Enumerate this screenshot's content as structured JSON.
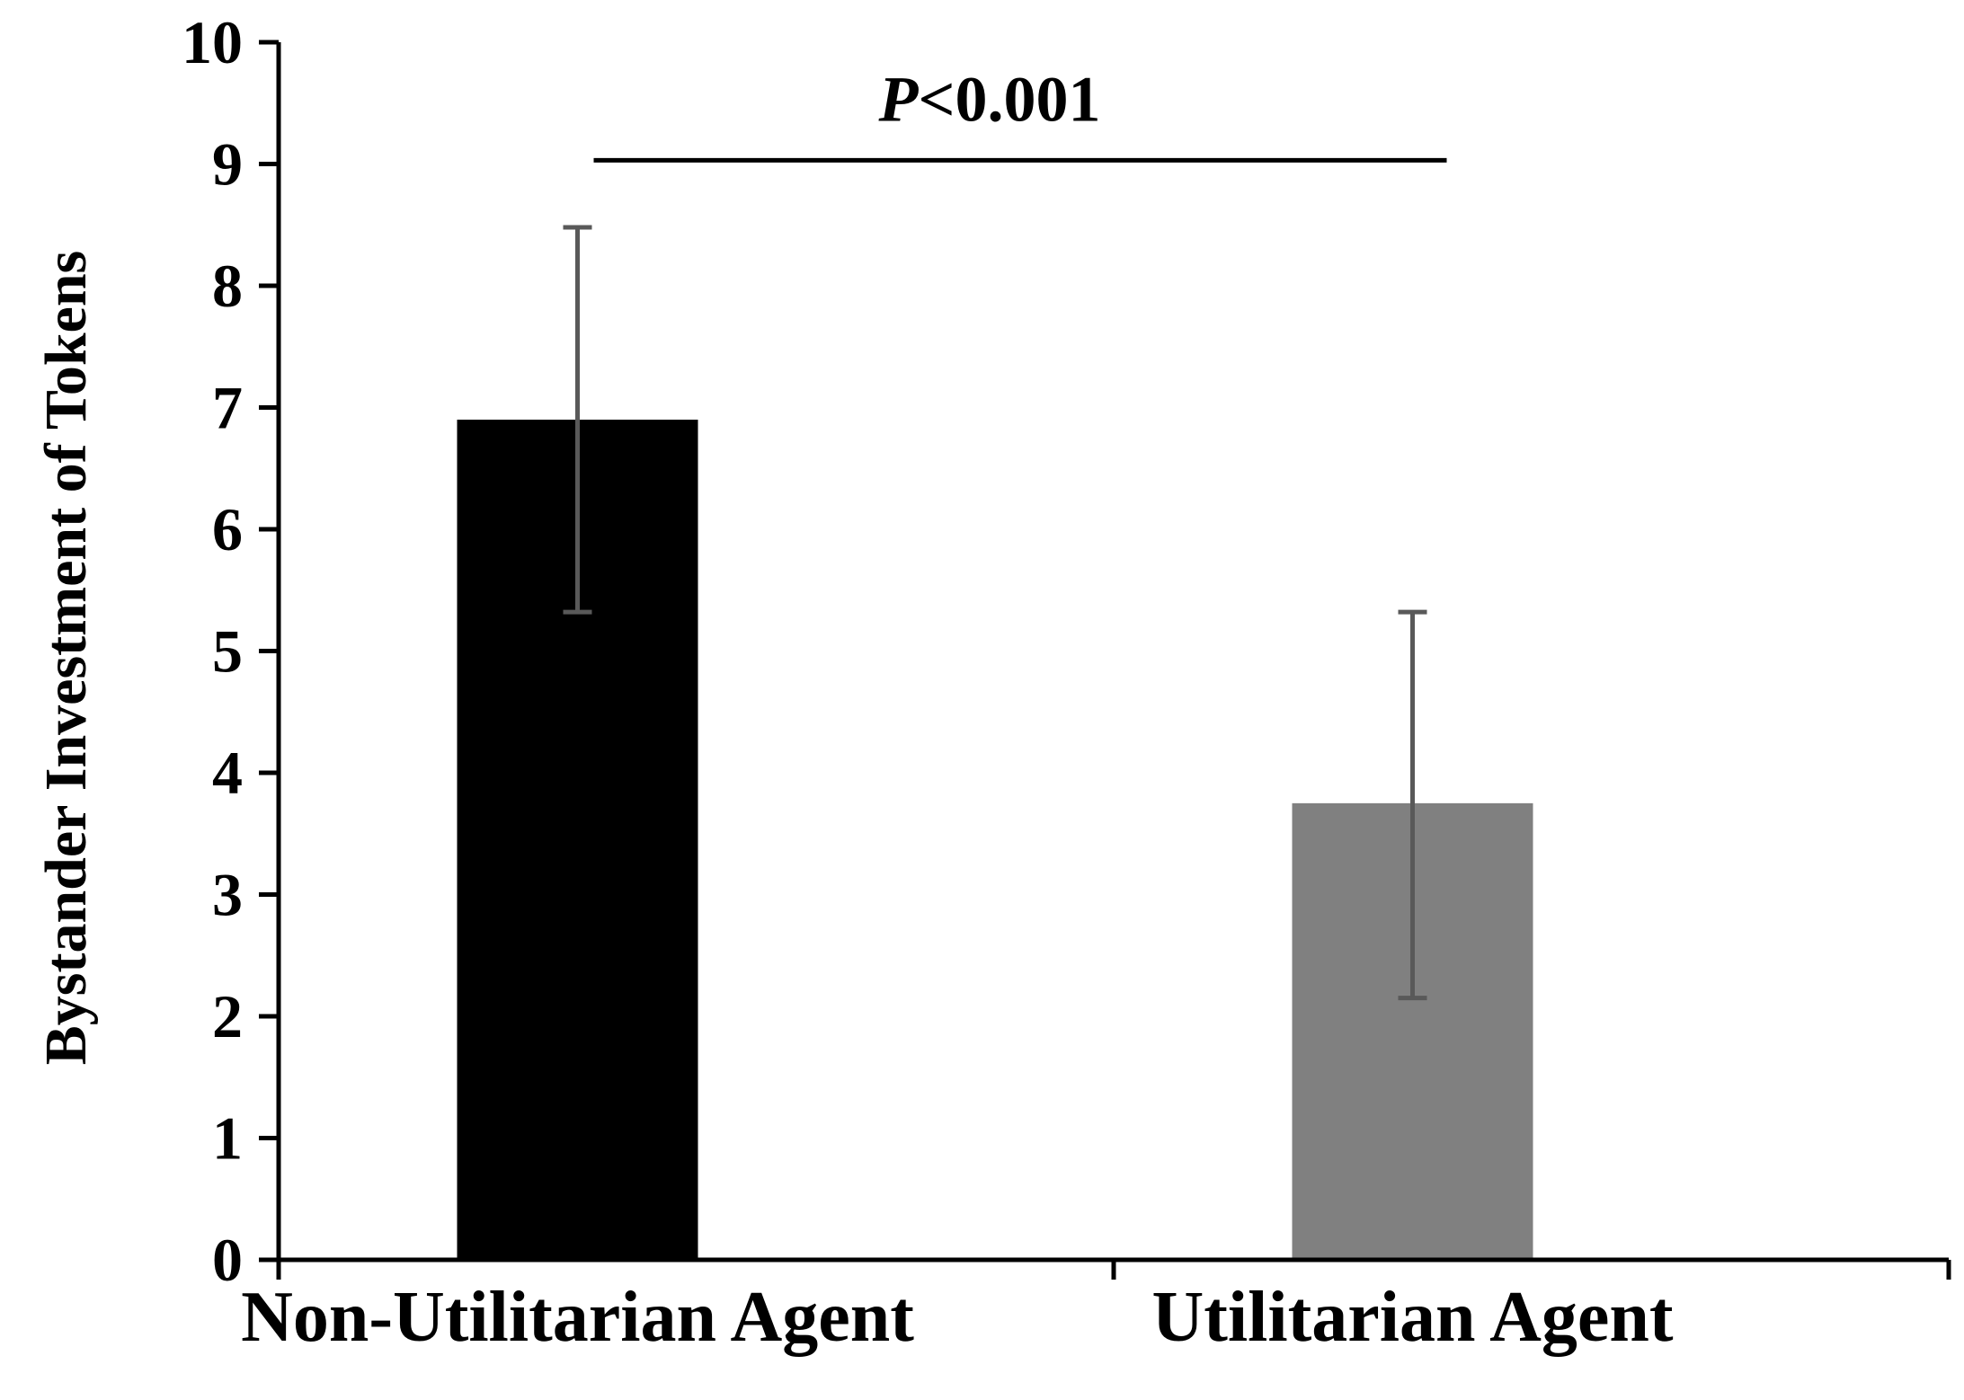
{
  "chart_data": {
    "type": "bar",
    "title": "",
    "xlabel": "",
    "ylabel": "Bystander Investment of Tokens",
    "categories": [
      "Non-Utilitarian Agent",
      "Utilitarian Agent"
    ],
    "values": [
      6.9,
      3.75
    ],
    "error": [
      {
        "low": 5.32,
        "high": 8.48
      },
      {
        "low": 2.15,
        "high": 5.32
      }
    ],
    "bar_colors": [
      "#000000",
      "#808080"
    ],
    "error_color": "#595959",
    "ylim": [
      0,
      10
    ],
    "yticks": [
      "0",
      "1",
      "2",
      "3",
      "4",
      "5",
      "6",
      "7",
      "8",
      "9",
      "10"
    ],
    "grid": false,
    "legend": "none",
    "significance": {
      "prefix": "P",
      "label": "<0.001",
      "level": 9.03
    }
  }
}
